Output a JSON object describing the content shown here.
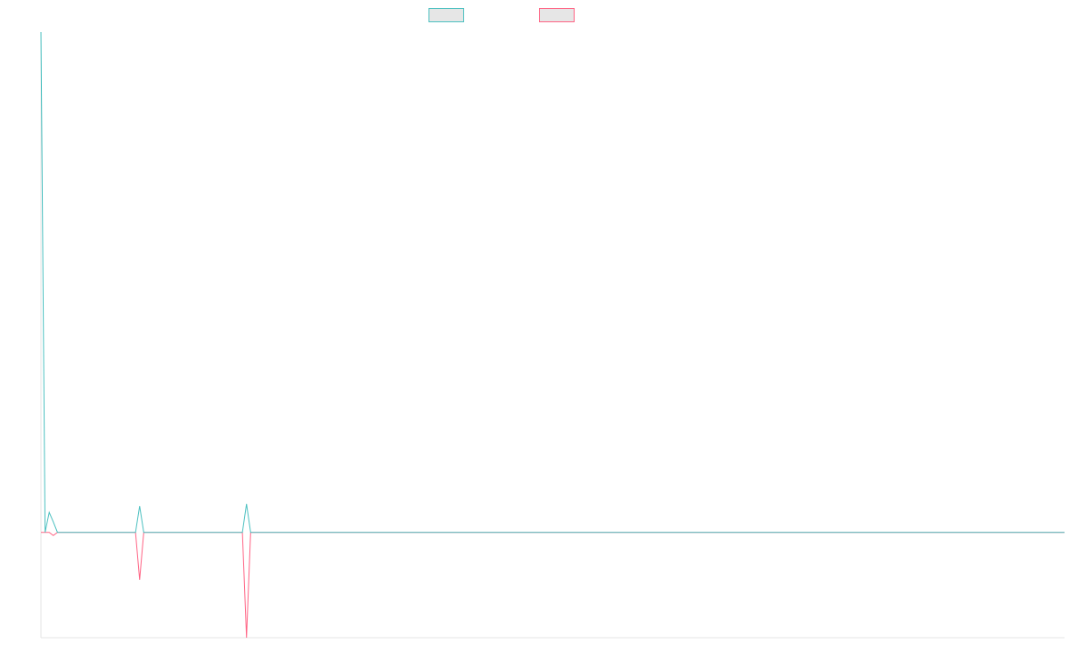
{
  "chart_data": {
    "type": "line",
    "title": "",
    "xlabel": "",
    "ylabel": "",
    "grid": false,
    "legend_placement": "top-center",
    "x": [
      0,
      1,
      2,
      3,
      4,
      5,
      6,
      7,
      8,
      9,
      10,
      11,
      12,
      13,
      14,
      15,
      16,
      17,
      18,
      19,
      20,
      21,
      22,
      23,
      24,
      25,
      26,
      27,
      28,
      29,
      30,
      31,
      32,
      33,
      34,
      35,
      36,
      37,
      38,
      39,
      40,
      41,
      42,
      43,
      44,
      45,
      46,
      47,
      48,
      49,
      50,
      51,
      52,
      53,
      54,
      55,
      56,
      57,
      58,
      59,
      60,
      61,
      62,
      63,
      64,
      65,
      66,
      67,
      68,
      69,
      70,
      71,
      72,
      73,
      74,
      75,
      76,
      77,
      78,
      79,
      80,
      81,
      82,
      83,
      84,
      85,
      86,
      87,
      88,
      89,
      90,
      91,
      92,
      93,
      94,
      95,
      96,
      97,
      98,
      99,
      100,
      101,
      102,
      103,
      104,
      105,
      106,
      107,
      108,
      109,
      110,
      111,
      112,
      113,
      114,
      115,
      116,
      117,
      118,
      119,
      120,
      121,
      122,
      123,
      124,
      125,
      126,
      127,
      128,
      129,
      130,
      131,
      132,
      133,
      134,
      135,
      136,
      137,
      138,
      139,
      140,
      141,
      142,
      143,
      144,
      145,
      146,
      147,
      148,
      149,
      150,
      151,
      152,
      153,
      154,
      155,
      156,
      157,
      158,
      159,
      160,
      161,
      162,
      163,
      164,
      165,
      166,
      167,
      168,
      169,
      170,
      171,
      172,
      173,
      174,
      175,
      176,
      177,
      178,
      179,
      180,
      181,
      182,
      183,
      184,
      185,
      186,
      187,
      188,
      189,
      190,
      191,
      192,
      193,
      194,
      195,
      196,
      197,
      198,
      199,
      200,
      201,
      202,
      203,
      204,
      205,
      206,
      207,
      208,
      209,
      210,
      211,
      212,
      213,
      214,
      215,
      216,
      217,
      218,
      219,
      220,
      221,
      222,
      223,
      224,
      225,
      226,
      227,
      228,
      229,
      230,
      231,
      232,
      233,
      234,
      235,
      236,
      237,
      238,
      239,
      240,
      241,
      242,
      243,
      244,
      245,
      246,
      247,
      248,
      249
    ],
    "xlim": [
      0,
      249
    ],
    "ylim": [
      -100,
      475
    ],
    "series": [
      {
        "name": "",
        "color": "#4bc0c0",
        "values": [
          475,
          0,
          19,
          10,
          0,
          0,
          0,
          0,
          0,
          0,
          0,
          0,
          0,
          0,
          0,
          0,
          0,
          0,
          0,
          0,
          0,
          0,
          0,
          0,
          25,
          0,
          0,
          0,
          0,
          0,
          0,
          0,
          0,
          0,
          0,
          0,
          0,
          0,
          0,
          0,
          0,
          0,
          0,
          0,
          0,
          0,
          0,
          0,
          0,
          0,
          27,
          0,
          0,
          0,
          0,
          0,
          0,
          0,
          0,
          0,
          0,
          0,
          0,
          0,
          0,
          0,
          0,
          0,
          0,
          0,
          0,
          0,
          0,
          0,
          0,
          0,
          0,
          0,
          0,
          0,
          0,
          0,
          0,
          0,
          0,
          0,
          0,
          0,
          0,
          0,
          0,
          0,
          0,
          0,
          0,
          0,
          0,
          0,
          0,
          0,
          0,
          0,
          0,
          0,
          0,
          0,
          0,
          0,
          0,
          0,
          0,
          0,
          0,
          0,
          0,
          0,
          0,
          0,
          0,
          0,
          0,
          0,
          0,
          0,
          0,
          0,
          0,
          0,
          0,
          0,
          0,
          0,
          0,
          0,
          0,
          0,
          0,
          0,
          0,
          0,
          0,
          0,
          0,
          0,
          0,
          0,
          0,
          0,
          0,
          0,
          0,
          0,
          0,
          0,
          0,
          0,
          0,
          0,
          0,
          0,
          0,
          0,
          0,
          0,
          0,
          0,
          0,
          0,
          0,
          0,
          0,
          0,
          0,
          0,
          0,
          0,
          0,
          0,
          0,
          0,
          0,
          0,
          0,
          0,
          0,
          0,
          0,
          0,
          0,
          0,
          0,
          0,
          0,
          0,
          0,
          0,
          0,
          0,
          0,
          0,
          0,
          0,
          0,
          0,
          0,
          0,
          0,
          0,
          0,
          0,
          0,
          0,
          0,
          0,
          0,
          0,
          0,
          0,
          0,
          0,
          0,
          0,
          0,
          0,
          0,
          0,
          0,
          0,
          0,
          0,
          0,
          0,
          0,
          0,
          0,
          0,
          0,
          0,
          0,
          0,
          0,
          0,
          0,
          0,
          0,
          0,
          0,
          0,
          0,
          0
        ]
      },
      {
        "name": "",
        "color": "#ff6384",
        "values": [
          0,
          0,
          0,
          -3,
          0,
          0,
          0,
          0,
          0,
          0,
          0,
          0,
          0,
          0,
          0,
          0,
          0,
          0,
          0,
          0,
          0,
          0,
          0,
          0,
          -45,
          0,
          0,
          0,
          0,
          0,
          0,
          0,
          0,
          0,
          0,
          0,
          0,
          0,
          0,
          0,
          0,
          0,
          0,
          0,
          0,
          0,
          0,
          0,
          0,
          0,
          -100,
          0,
          0,
          0,
          0,
          0,
          0,
          0,
          0,
          0,
          0,
          0,
          0,
          0,
          0,
          0,
          0,
          0,
          0,
          0,
          0,
          0,
          0,
          0,
          0,
          0,
          0,
          0,
          0,
          0,
          0,
          0,
          0,
          0,
          0,
          0,
          0,
          0,
          0,
          0,
          0,
          0,
          0,
          0,
          0,
          0,
          0,
          0,
          0,
          0,
          0,
          0,
          0,
          0,
          0,
          0,
          0,
          0,
          0,
          0,
          0,
          0,
          0,
          0,
          0,
          0,
          0,
          0,
          0,
          0,
          0,
          0,
          0,
          0,
          0,
          0,
          0,
          0,
          0,
          0,
          0,
          0,
          0,
          0,
          0,
          0,
          0,
          0,
          0,
          0,
          0,
          0,
          0,
          0,
          0,
          0,
          0,
          0,
          0,
          0,
          0,
          0,
          0,
          0,
          0,
          0,
          0,
          0,
          0,
          0,
          0,
          0,
          0,
          0,
          0,
          0,
          0,
          0,
          0,
          0,
          0,
          0,
          0,
          0,
          0,
          0,
          0,
          0,
          0,
          0,
          0,
          0,
          0,
          0,
          0,
          0,
          0,
          0,
          0,
          0,
          0,
          0,
          0,
          0,
          0,
          0,
          0,
          0,
          0,
          0,
          0,
          0,
          0,
          0,
          0,
          0,
          0,
          0,
          0,
          0,
          0,
          0,
          0,
          0,
          0,
          0,
          0,
          0,
          0,
          0,
          0,
          0,
          0,
          0,
          0,
          0,
          0,
          0,
          0,
          0,
          0,
          0,
          0,
          0,
          0,
          0,
          0,
          0,
          0,
          0,
          0,
          0,
          0,
          0,
          0,
          0,
          0,
          0,
          0,
          0
        ]
      }
    ]
  }
}
